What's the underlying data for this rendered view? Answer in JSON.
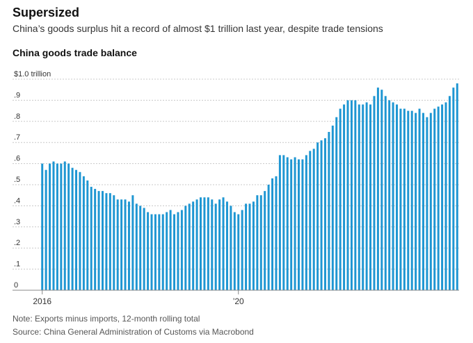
{
  "header": {
    "title": "Supersized",
    "subtitle": "China’s goods surplus hit a record of almost $1 trillion last year, despite trade tensions",
    "chart_title": "China goods trade balance"
  },
  "footer": {
    "note": "Note: Exports minus imports, 12-month rolling total",
    "source": "Source: China General Administration of Customs via Macrobond"
  },
  "colors": {
    "bar": "#1e96d2",
    "grid": "#c8c8c8",
    "axis": "#888888",
    "text": "#333333"
  },
  "chart_data": {
    "type": "bar",
    "title": "China goods trade balance",
    "ylabel": "$1.0 trillion",
    "xlabel": "",
    "ylim": [
      0,
      1.0
    ],
    "yticks": [
      0,
      0.1,
      0.2,
      0.3,
      0.4,
      0.5,
      0.6,
      0.7,
      0.8,
      0.9,
      1.0
    ],
    "ytick_labels": [
      "0",
      ".1",
      ".2",
      ".3",
      ".4",
      ".5",
      ".6",
      ".7",
      ".8",
      ".9",
      "$1.0 trillion"
    ],
    "xtick_labels": [
      {
        "label": "2016",
        "index": 0
      },
      {
        "label": "’20",
        "index": 52
      }
    ],
    "frequency": "monthly (approx.), starting 2016",
    "series": [
      {
        "name": "Trade balance ($ trillion)",
        "values": [
          0.6,
          0.57,
          0.6,
          0.61,
          0.6,
          0.6,
          0.61,
          0.6,
          0.58,
          0.57,
          0.56,
          0.54,
          0.52,
          0.49,
          0.48,
          0.47,
          0.47,
          0.46,
          0.46,
          0.45,
          0.43,
          0.43,
          0.43,
          0.42,
          0.45,
          0.41,
          0.4,
          0.39,
          0.37,
          0.36,
          0.36,
          0.36,
          0.36,
          0.37,
          0.38,
          0.36,
          0.37,
          0.38,
          0.4,
          0.41,
          0.42,
          0.43,
          0.44,
          0.44,
          0.44,
          0.43,
          0.41,
          0.43,
          0.44,
          0.42,
          0.4,
          0.37,
          0.36,
          0.38,
          0.41,
          0.41,
          0.42,
          0.45,
          0.45,
          0.47,
          0.5,
          0.53,
          0.54,
          0.64,
          0.64,
          0.63,
          0.62,
          0.63,
          0.62,
          0.62,
          0.64,
          0.66,
          0.67,
          0.7,
          0.71,
          0.72,
          0.75,
          0.78,
          0.82,
          0.86,
          0.88,
          0.9,
          0.9,
          0.9,
          0.88,
          0.88,
          0.89,
          0.88,
          0.92,
          0.96,
          0.95,
          0.92,
          0.9,
          0.89,
          0.88,
          0.86,
          0.86,
          0.85,
          0.85,
          0.84,
          0.86,
          0.84,
          0.82,
          0.84,
          0.86,
          0.87,
          0.88,
          0.89,
          0.92,
          0.96,
          0.98
        ]
      }
    ]
  }
}
